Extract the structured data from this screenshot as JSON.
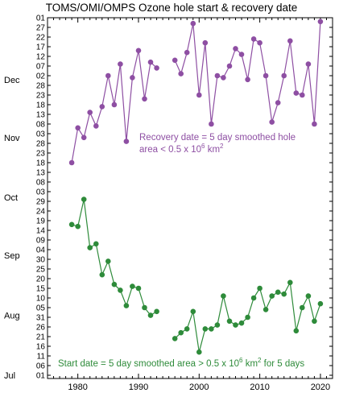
{
  "chart_data": {
    "type": "line",
    "title": "TOMS/OMI/OMPS Ozone hole start & recovery date",
    "xlabel": "",
    "ylabel": "",
    "xlim": [
      1975,
      2022
    ],
    "ylim": [
      "Jul 01",
      "Jan 01"
    ],
    "x_ticks": [
      "1980",
      "1990",
      "2000",
      "2010",
      "2020"
    ],
    "y_day_ticks": [
      "01",
      "06",
      "11",
      "16",
      "21",
      "26",
      "31",
      "05",
      "10",
      "15",
      "20",
      "25",
      "30",
      "04",
      "09",
      "14",
      "19",
      "24",
      "29",
      "03",
      "08",
      "13",
      "18",
      "23",
      "28",
      "03",
      "08",
      "13",
      "18",
      "23",
      "28",
      "02",
      "07",
      "12",
      "17",
      "22",
      "27",
      "01"
    ],
    "y_day_ticks_top": [
      "08",
      "13",
      "18",
      "23",
      "28"
    ],
    "month_labels": [
      "Jul",
      "Aug",
      "Sep",
      "Oct",
      "Nov",
      "Dec"
    ],
    "colors": {
      "recovery": "#8e4fa3",
      "start": "#2e8b3a"
    },
    "series": [
      {
        "name": "Recovery date",
        "color": "#8e4fa3",
        "points": [
          [
            1979,
            "Oct 19"
          ],
          [
            1980,
            "Nov 06"
          ],
          [
            1981,
            "Nov 01"
          ],
          [
            1982,
            "Nov 14"
          ],
          [
            1983,
            "Nov 07"
          ],
          [
            1984,
            "Nov 17"
          ],
          [
            1985,
            "Dec 03"
          ],
          [
            1986,
            "Nov 18"
          ],
          [
            1987,
            "Dec 09"
          ],
          [
            1988,
            "Oct 30"
          ],
          [
            1989,
            "Dec 02"
          ],
          [
            1990,
            "Dec 16"
          ],
          [
            1991,
            "Nov 21"
          ],
          [
            1992,
            "Dec 10"
          ],
          [
            1993,
            "Dec 07"
          ],
          null,
          [
            1996,
            "Dec 11"
          ],
          [
            1997,
            "Dec 04"
          ],
          [
            1998,
            "Dec 15"
          ],
          [
            1999,
            "Dec 30"
          ],
          [
            2000,
            "Nov 23"
          ],
          [
            2001,
            "Dec 20"
          ],
          [
            2002,
            "Nov 08"
          ],
          [
            2003,
            "Dec 03"
          ],
          [
            2004,
            "Dec 02"
          ],
          [
            2005,
            "Dec 08"
          ],
          [
            2006,
            "Dec 17"
          ],
          [
            2007,
            "Dec 14"
          ],
          [
            2008,
            "Dec 01"
          ],
          [
            2009,
            "Dec 22"
          ],
          [
            2010,
            "Dec 20"
          ],
          [
            2011,
            "Dec 03"
          ],
          [
            2012,
            "Nov 09"
          ],
          [
            2013,
            "Nov 19"
          ],
          [
            2014,
            "Dec 03"
          ],
          [
            2015,
            "Dec 21"
          ],
          [
            2016,
            "Nov 24"
          ],
          [
            2017,
            "Nov 23"
          ],
          [
            2018,
            "Dec 09"
          ],
          [
            2019,
            "Nov 08"
          ],
          [
            2020,
            "Dec 31"
          ]
        ]
      },
      {
        "name": "Start date",
        "color": "#2e8b3a",
        "points": [
          [
            1979,
            "Sep 17"
          ],
          [
            1980,
            "Sep 16"
          ],
          [
            1981,
            "Sep 30"
          ],
          [
            1982,
            "Sep 05"
          ],
          [
            1983,
            "Sep 07"
          ],
          [
            1984,
            "Aug 22"
          ],
          [
            1985,
            "Aug 29"
          ],
          [
            1986,
            "Aug 17"
          ],
          [
            1987,
            "Aug 14"
          ],
          [
            1988,
            "Aug 06"
          ],
          [
            1989,
            "Aug 16"
          ],
          [
            1990,
            "Aug 15"
          ],
          [
            1991,
            "Aug 05"
          ],
          [
            1992,
            "Aug 01"
          ],
          [
            1993,
            "Aug 03"
          ],
          null,
          [
            1996,
            "Jul 20"
          ],
          [
            1997,
            "Jul 23"
          ],
          [
            1998,
            "Jul 25"
          ],
          [
            1999,
            "Aug 03"
          ],
          [
            2000,
            "Jul 13"
          ],
          [
            2001,
            "Jul 25"
          ],
          [
            2002,
            "Jul 25"
          ],
          [
            2003,
            "Jul 27"
          ],
          [
            2004,
            "Aug 11"
          ],
          [
            2005,
            "Jul 29"
          ],
          [
            2006,
            "Jul 27"
          ],
          [
            2007,
            "Jul 28"
          ],
          [
            2008,
            "Jul 31"
          ],
          [
            2009,
            "Aug 10"
          ],
          [
            2010,
            "Aug 15"
          ],
          [
            2011,
            "Aug 04"
          ],
          [
            2012,
            "Aug 11"
          ],
          [
            2013,
            "Aug 13"
          ],
          [
            2014,
            "Aug 12"
          ],
          [
            2015,
            "Aug 18"
          ],
          [
            2016,
            "Jul 24"
          ],
          [
            2017,
            "Aug 05"
          ],
          [
            2018,
            "Aug 11"
          ],
          [
            2019,
            "Jul 29"
          ],
          [
            2020,
            "Aug 07"
          ]
        ]
      }
    ],
    "annotations": {
      "recovery": "Recovery date = 5 day smoothed hole area < 0.5 x 10⁶ km²",
      "start": "Start date = 5 day smoothed area > 0.5 x 10⁶ km² for 5 days"
    }
  }
}
